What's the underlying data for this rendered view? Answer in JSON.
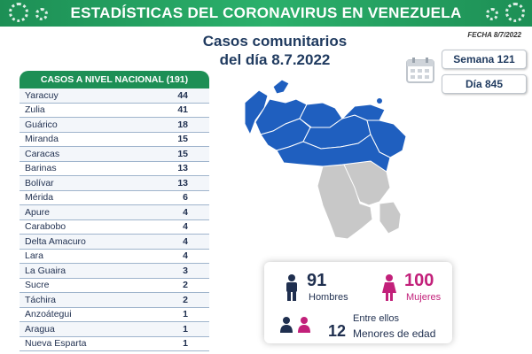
{
  "header": {
    "title": "ESTADÍSTICAS DEL CORONAVIRUS EN VENEZUELA"
  },
  "subtitle": {
    "line1": "Casos comunitarios",
    "line2": "del día 8.7.2022"
  },
  "date_label": "FECHA 8/7/2022",
  "week_label": "Semana 121",
  "day_label": "Día 845",
  "table": {
    "header": "CASOS A NIVEL NACIONAL (191)",
    "rows": [
      {
        "name": "Yaracuy",
        "value": "44"
      },
      {
        "name": "Zulia",
        "value": "41"
      },
      {
        "name": "Guárico",
        "value": "18"
      },
      {
        "name": "Miranda",
        "value": "15"
      },
      {
        "name": "Caracas",
        "value": "15"
      },
      {
        "name": "Barinas",
        "value": "13"
      },
      {
        "name": "Bolívar",
        "value": "13"
      },
      {
        "name": "Mérida",
        "value": "6"
      },
      {
        "name": "Apure",
        "value": "4"
      },
      {
        "name": "Carabobo",
        "value": "4"
      },
      {
        "name": "Delta Amacuro",
        "value": "4"
      },
      {
        "name": "Lara",
        "value": "4"
      },
      {
        "name": "La Guaira",
        "value": "3"
      },
      {
        "name": "Sucre",
        "value": "2"
      },
      {
        "name": "Táchira",
        "value": "2"
      },
      {
        "name": "Anzoátegui",
        "value": "1"
      },
      {
        "name": "Aragua",
        "value": "1"
      },
      {
        "name": "Nueva Esparta",
        "value": "1"
      }
    ]
  },
  "stats": {
    "men_count": "91",
    "men_label": "Hombres",
    "women_count": "100",
    "women_label": "Mujeres",
    "minors_intro": "Entre ellos",
    "minors_count": "12",
    "minors_label": "Menores de edad"
  },
  "colors": {
    "green": "#1d8f55",
    "blue": "#1f5fbf",
    "gray": "#c8c8c8",
    "women": "#c2207a",
    "navy": "#1f3a5f"
  }
}
